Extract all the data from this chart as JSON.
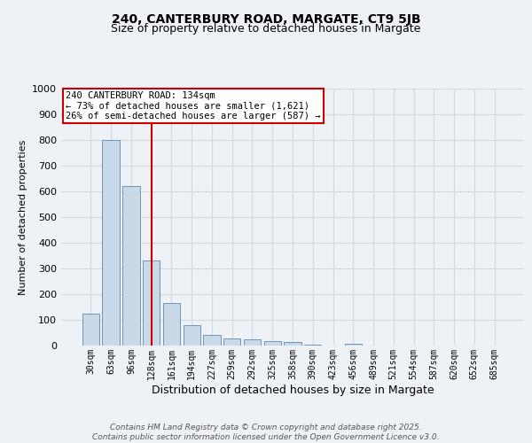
{
  "title": "240, CANTERBURY ROAD, MARGATE, CT9 5JB",
  "subtitle": "Size of property relative to detached houses in Margate",
  "xlabel": "Distribution of detached houses by size in Margate",
  "ylabel": "Number of detached properties",
  "bar_values": [
    125,
    800,
    620,
    330,
    165,
    80,
    40,
    28,
    25,
    18,
    13,
    5,
    0,
    8,
    0,
    0,
    0,
    0,
    0,
    0,
    0
  ],
  "categories": [
    "30sqm",
    "63sqm",
    "96sqm",
    "128sqm",
    "161sqm",
    "194sqm",
    "227sqm",
    "259sqm",
    "292sqm",
    "325sqm",
    "358sqm",
    "390sqm",
    "423sqm",
    "456sqm",
    "489sqm",
    "521sqm",
    "554sqm",
    "587sqm",
    "620sqm",
    "652sqm",
    "685sqm"
  ],
  "bar_color": "#c9d9e8",
  "bar_edge_color": "#5a8ab0",
  "grid_color": "#d0d8e0",
  "background_color": "#eef2f7",
  "plot_bg_color": "#eef2f7",
  "red_line_index": 3,
  "red_line_color": "#cc0000",
  "annotation_text": "240 CANTERBURY ROAD: 134sqm\n← 73% of detached houses are smaller (1,621)\n26% of semi-detached houses are larger (587) →",
  "annotation_box_color": "#ffffff",
  "annotation_border_color": "#cc0000",
  "ylim": [
    0,
    1000
  ],
  "yticks": [
    0,
    100,
    200,
    300,
    400,
    500,
    600,
    700,
    800,
    900,
    1000
  ],
  "footer_line1": "Contains HM Land Registry data © Crown copyright and database right 2025.",
  "footer_line2": "Contains public sector information licensed under the Open Government Licence v3.0.",
  "title_fontsize": 10,
  "subtitle_fontsize": 9,
  "tick_fontsize": 7,
  "xlabel_fontsize": 9,
  "ylabel_fontsize": 8,
  "footer_fontsize": 6.5,
  "ann_fontsize": 7.5
}
